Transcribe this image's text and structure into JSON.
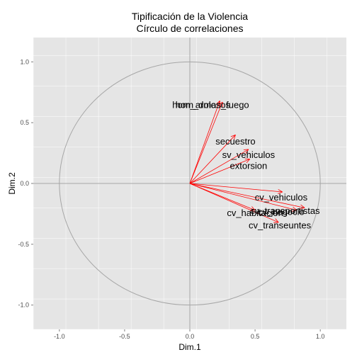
{
  "chart_data": {
    "type": "scatter",
    "title_lines": [
      "Tipificación de la Violencia",
      "Círculo de correlaciones"
    ],
    "xlabel": "Dim.1",
    "ylabel": "Dim.2",
    "xlim": [
      -1.2,
      1.2
    ],
    "ylim": [
      -1.2,
      1.2
    ],
    "x_ticks": [
      -1.0,
      -0.5,
      0.0,
      0.5,
      1.0
    ],
    "x_tick_labels": [
      "-1.0",
      "-0.5",
      "0.0",
      "0.5",
      "1.0"
    ],
    "y_ticks": [
      -1.0,
      -0.5,
      0.0,
      0.5,
      1.0
    ],
    "y_tick_labels": [
      "-1.0",
      "-0.5",
      "0.0",
      "0.5",
      "1.0"
    ],
    "grid": true,
    "unit_circle": true,
    "arrow_color": "#ff0000",
    "panel_color": "#e5e5e5",
    "variables": [
      {
        "name": "hom_dolosos",
        "x": 0.23,
        "y": 0.68
      },
      {
        "name": "hom_armas_fuego",
        "x": 0.25,
        "y": 0.67
      },
      {
        "name": "secuestro",
        "x": 0.35,
        "y": 0.4
      },
      {
        "name": "sv_vehiculos",
        "x": 0.45,
        "y": 0.28
      },
      {
        "name": "extorsion",
        "x": 0.46,
        "y": 0.2
      },
      {
        "name": "cv_vehiculos",
        "x": 0.71,
        "y": -0.07
      },
      {
        "name": "cv_transportistas",
        "x": 0.88,
        "y": -0.2
      },
      {
        "name": "cv_negocio",
        "x": 0.82,
        "y": -0.22
      },
      {
        "name": "cv_habitacion",
        "x": 0.5,
        "y": -0.22
      },
      {
        "name": "cv_transeuntes",
        "x": 0.68,
        "y": -0.32
      }
    ],
    "labels": [
      {
        "text": "hom_dolosos",
        "x": 0.1,
        "y": 0.65
      },
      {
        "text": "hom_armas_fuego",
        "x": 0.16,
        "y": 0.65
      },
      {
        "text": "secuestro",
        "x": 0.35,
        "y": 0.35
      },
      {
        "text": "sv_vehiculos",
        "x": 0.45,
        "y": 0.24
      },
      {
        "text": "extorsion",
        "x": 0.45,
        "y": 0.15
      },
      {
        "text": "cv_vehiculos",
        "x": 0.7,
        "y": -0.11
      },
      {
        "text": "cv_transportistas",
        "x": 0.73,
        "y": -0.22
      },
      {
        "text": "cv_negocio",
        "x": 0.7,
        "y": -0.23
      },
      {
        "text": "cv_habitacion",
        "x": 0.5,
        "y": -0.24
      },
      {
        "text": "cv_transeuntes",
        "x": 0.69,
        "y": -0.34
      }
    ]
  }
}
